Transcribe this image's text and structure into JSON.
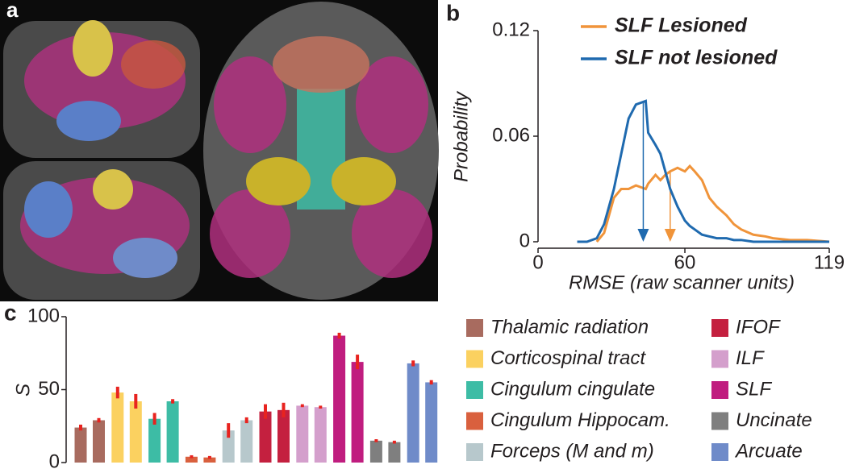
{
  "panel_labels": {
    "a": "a",
    "b": "b",
    "c": "c"
  },
  "chart_data": [
    {
      "type": "line",
      "xlabel": "RMSE (raw scanner units)",
      "ylabel": "Probability",
      "xlim": [
        0,
        119
      ],
      "xticks": [
        0,
        60,
        119
      ],
      "ylim": [
        0,
        0.12
      ],
      "yticks": [
        0,
        0.06,
        0.12
      ],
      "x": [
        16,
        20,
        24,
        27,
        31,
        34,
        37,
        40,
        44,
        45,
        48,
        50,
        52,
        54,
        57,
        60,
        62,
        64,
        67,
        70,
        73,
        77,
        80,
        83,
        88,
        93,
        96,
        103,
        110,
        119
      ],
      "series": [
        {
          "name": "SLF Lesioned",
          "color": "#f0943a",
          "mean": 54,
          "values": [
            null,
            null,
            0,
            0.005,
            0.025,
            0.03,
            0.03,
            0.032,
            0.03,
            0.033,
            0.038,
            0.035,
            0.038,
            0.04,
            0.042,
            0.04,
            0.043,
            0.04,
            0.035,
            0.025,
            0.02,
            0.015,
            0.01,
            0.007,
            0.004,
            0.003,
            0.002,
            0.001,
            0.001,
            0
          ]
        },
        {
          "name": "SLF not lesioned",
          "color": "#1f6aaf",
          "mean": 43,
          "values": [
            0,
            0,
            0.002,
            0.01,
            0.03,
            0.05,
            0.07,
            0.078,
            0.08,
            0.062,
            0.055,
            0.05,
            0.04,
            0.03,
            0.02,
            0.012,
            0.009,
            0.007,
            0.004,
            0.003,
            0.002,
            0.002,
            0.001,
            0.001,
            0,
            0,
            0,
            0,
            0,
            0
          ]
        }
      ]
    },
    {
      "type": "bar",
      "ylabel": "S",
      "ylim": [
        0,
        100
      ],
      "yticks": [
        0,
        50,
        100
      ],
      "error_color": "#e8231f",
      "series": [
        {
          "name": "Thalamic radiation",
          "color": "#a86b5f",
          "values": [
            24,
            29
          ],
          "errors": [
            2,
            1.5
          ]
        },
        {
          "name": "Corticospinal tract",
          "color": "#fbd160",
          "values": [
            48,
            42
          ],
          "errors": [
            4,
            5
          ]
        },
        {
          "name": "Cingulum cingulate",
          "color": "#3dbca5",
          "values": [
            30,
            42
          ],
          "errors": [
            4,
            1.5
          ]
        },
        {
          "name": "Cingulum Hippocam.",
          "color": "#d9603e",
          "values": [
            4,
            3.5
          ],
          "errors": [
            1,
            1
          ]
        },
        {
          "name": "Forceps (M and m)",
          "color": "#b7c8cc",
          "values": [
            22,
            29
          ],
          "errors": [
            5,
            2
          ]
        },
        {
          "name": "IFOF",
          "color": "#c4203f",
          "values": [
            35,
            36
          ],
          "errors": [
            5,
            5
          ]
        },
        {
          "name": "ILF",
          "color": "#d49fcc",
          "values": [
            39,
            38
          ],
          "errors": [
            1,
            1
          ]
        },
        {
          "name": "SLF",
          "color": "#c01d7f",
          "values": [
            87,
            69
          ],
          "errors": [
            2,
            5
          ]
        },
        {
          "name": "Uncinate",
          "color": "#7f7f7f",
          "values": [
            15,
            14
          ],
          "errors": [
            1,
            1
          ]
        },
        {
          "name": "Arcuate",
          "color": "#6f8bc9",
          "values": [
            68,
            55
          ],
          "errors": [
            2,
            1.5
          ]
        }
      ]
    }
  ]
}
